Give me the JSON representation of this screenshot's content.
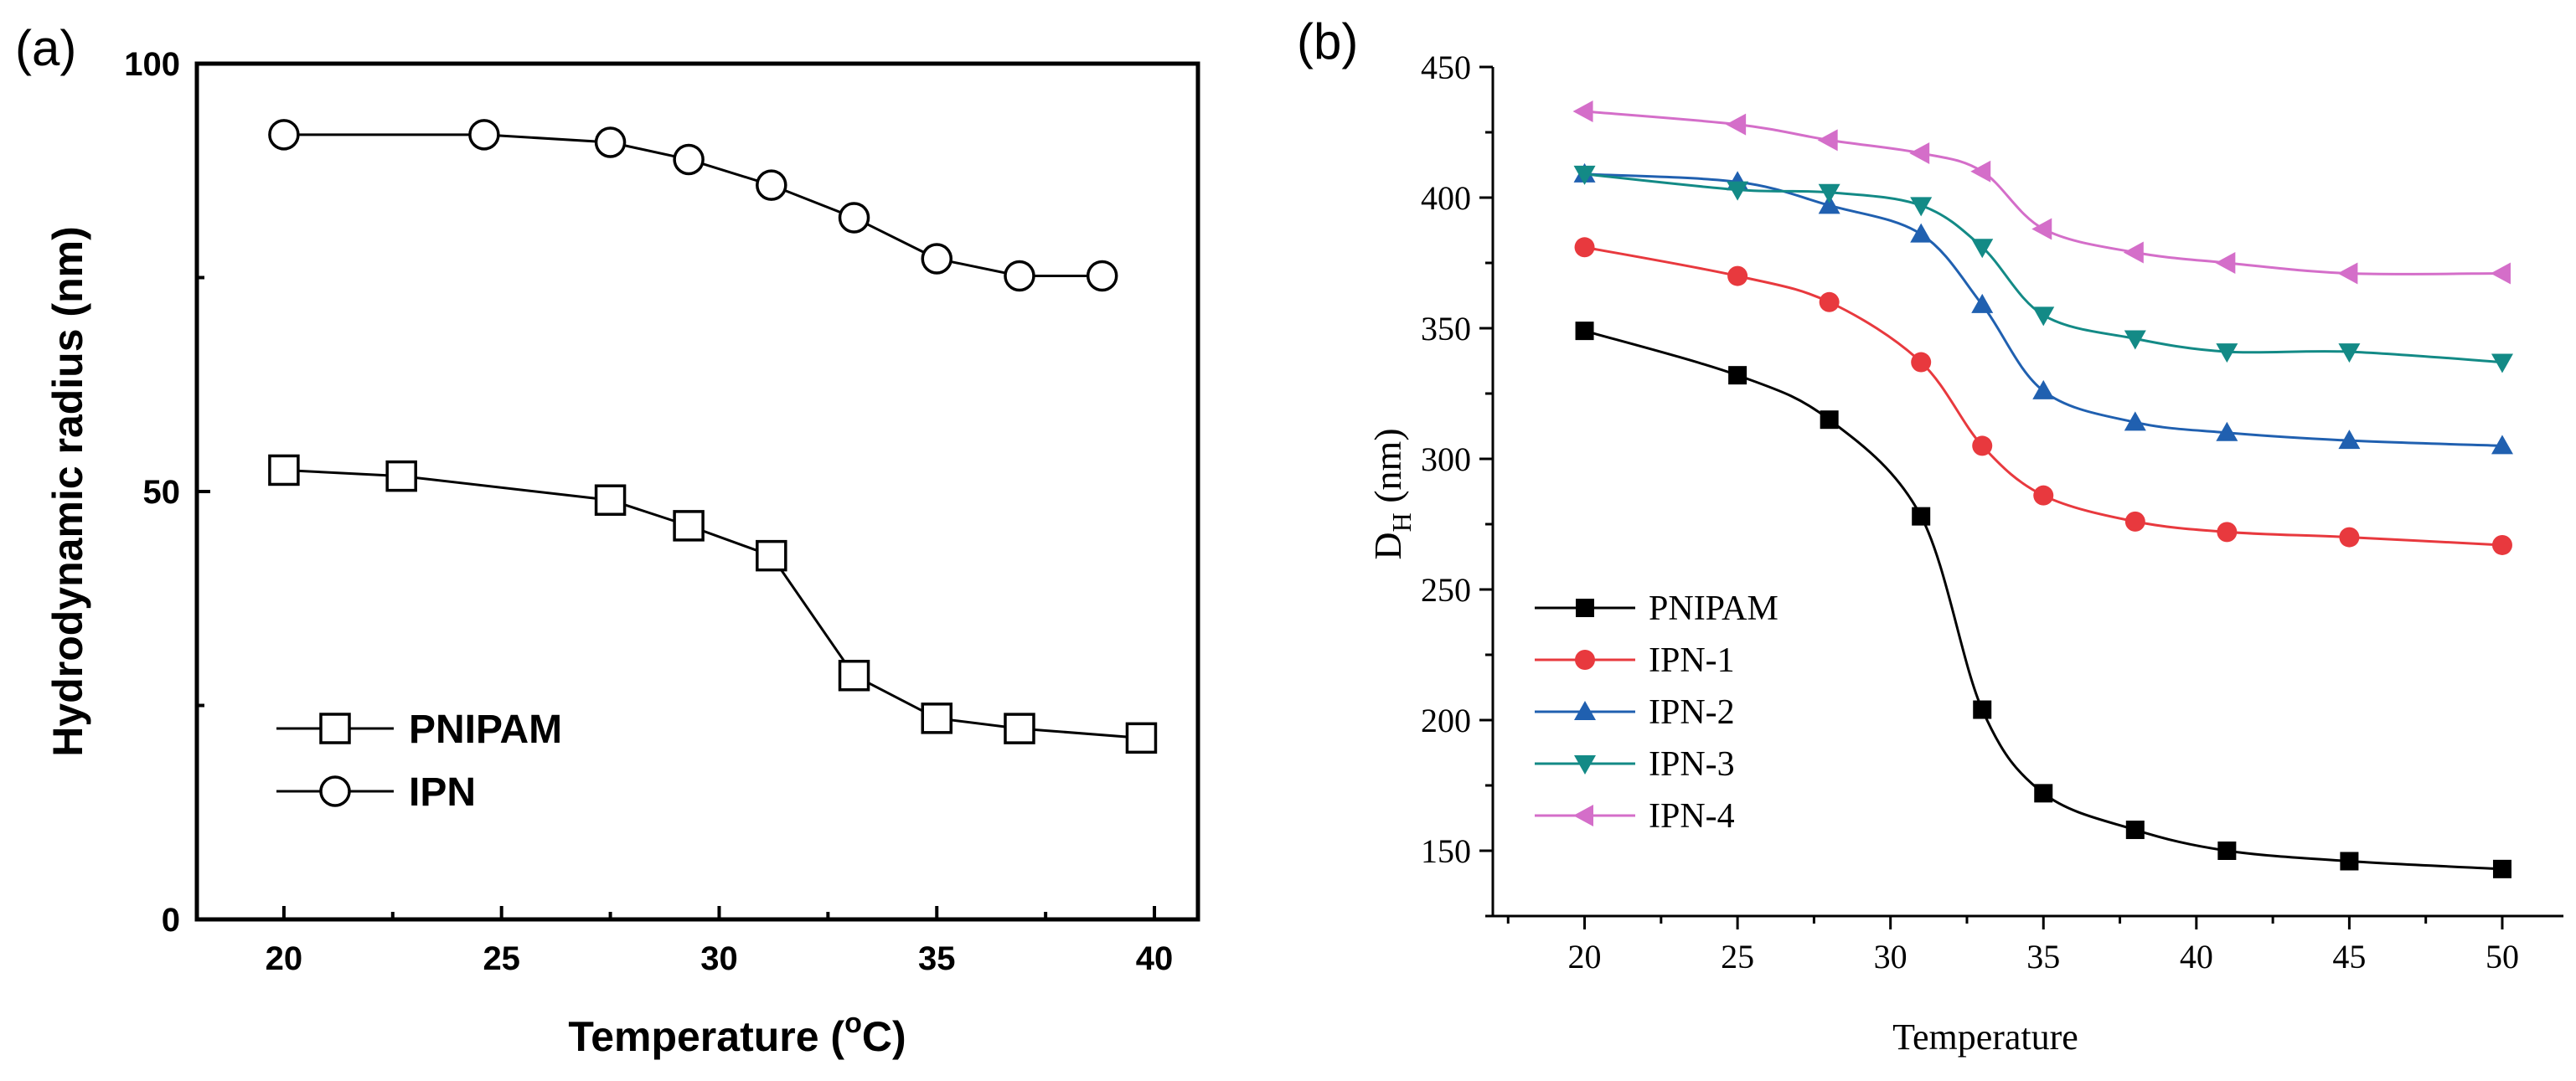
{
  "chart_data": [
    {
      "panel_label": "(a)",
      "type": "line",
      "xlabel": "Temperature (",
      "xlabel_unit": "o",
      "xlabel_suffix": "C)",
      "ylabel": "Hydrodynamic radius (nm)",
      "xlim": [
        18,
        41
      ],
      "ylim": [
        0,
        100
      ],
      "xticks": [
        20,
        25,
        30,
        35,
        40
      ],
      "yticks": [
        0,
        50,
        100
      ],
      "xtick_labels": [
        "20",
        "25",
        "30",
        "35",
        "40"
      ],
      "ytick_labels": [
        "0",
        "50",
        "100"
      ],
      "legend_position": "bottom-left",
      "series": [
        {
          "name": "PNIPAM",
          "marker": "square-open",
          "color": "#000000",
          "x": [
            20,
            22.7,
            27.5,
            29.3,
            31.2,
            33.1,
            35,
            36.9,
            39.7
          ],
          "y": [
            52.5,
            51.8,
            49,
            46,
            42.5,
            28.5,
            23.5,
            22.3,
            21.2
          ]
        },
        {
          "name": "IPN",
          "marker": "circle-open",
          "color": "#000000",
          "x": [
            20,
            24.6,
            27.5,
            29.3,
            31.2,
            33.1,
            35,
            36.9,
            38.8
          ],
          "y": [
            91.7,
            91.7,
            90.8,
            88.8,
            85.8,
            82,
            77.2,
            75.2,
            75.2
          ]
        }
      ]
    },
    {
      "panel_label": "(b)",
      "type": "line",
      "xlabel": "Temperature",
      "ylabel": "D",
      "ylabel_sub": "H",
      "ylabel_suffix": " (nm)",
      "xlim": [
        17,
        52
      ],
      "ylim": [
        125,
        450
      ],
      "xticks": [
        20,
        25,
        30,
        35,
        40,
        45,
        50
      ],
      "yticks": [
        150,
        200,
        250,
        300,
        350,
        400,
        450
      ],
      "xtick_labels": [
        "20",
        "25",
        "30",
        "35",
        "40",
        "45",
        "50"
      ],
      "ytick_labels": [
        "150",
        "200",
        "250",
        "300",
        "350",
        "400",
        "450"
      ],
      "legend_position": "bottom-left",
      "x": [
        20,
        25,
        28,
        31,
        33,
        35,
        38,
        41,
        45,
        50
      ],
      "series": [
        {
          "name": "PNIPAM",
          "marker": "square",
          "color": "#000000",
          "values": [
            349,
            332,
            315,
            278,
            204,
            172,
            158,
            150,
            146,
            143
          ]
        },
        {
          "name": "IPN-1",
          "marker": "circle",
          "color": "#e8393e",
          "values": [
            381,
            370,
            360,
            337,
            305,
            286,
            276,
            272,
            270,
            267
          ]
        },
        {
          "name": "IPN-2",
          "marker": "triangle-up",
          "color": "#2060b0",
          "values": [
            409,
            406,
            397,
            386,
            359,
            326,
            314,
            310,
            307,
            305
          ]
        },
        {
          "name": "IPN-3",
          "marker": "triangle-down",
          "color": "#138a86",
          "values": [
            409,
            403,
            402,
            397,
            381,
            355,
            346,
            341,
            341,
            337
          ]
        },
        {
          "name": "IPN-4",
          "marker": "triangle-left",
          "color": "#d46ec9",
          "values": [
            433,
            428,
            422,
            417,
            410,
            388,
            379,
            375,
            371,
            371
          ]
        }
      ]
    }
  ]
}
